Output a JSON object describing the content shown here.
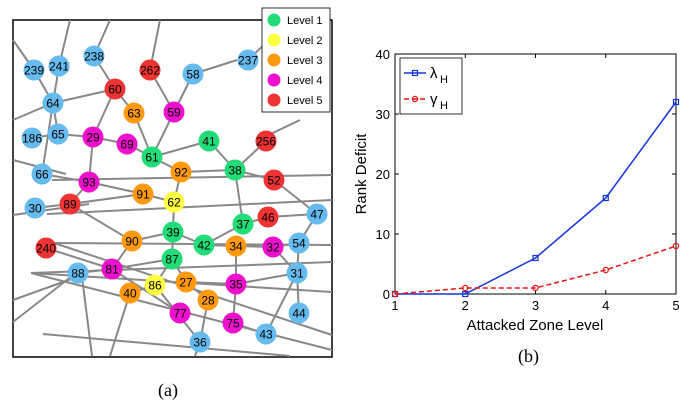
{
  "captions": {
    "a": "(a)",
    "b": "(b)"
  },
  "colors": {
    "level1": "#22dd77",
    "level2": "#ffff44",
    "level3": "#ff9a10",
    "level4": "#ee10cc",
    "level5": "#ee3333",
    "unclassified": "#66bbee",
    "edge": "#888888",
    "series_lambda": "#1133dd",
    "series_gamma": "#ee1111"
  },
  "graph": {
    "legend": [
      {
        "label": "Level 1",
        "level": 1
      },
      {
        "label": "Level 2",
        "level": 2
      },
      {
        "label": "Level 3",
        "level": 3
      },
      {
        "label": "Level 4",
        "level": 4
      },
      {
        "label": "Level 5",
        "level": 5
      }
    ],
    "nodes": [
      {
        "id": "239",
        "level": 0
      },
      {
        "id": "241",
        "level": 0
      },
      {
        "id": "238",
        "level": 0
      },
      {
        "id": "262",
        "level": 5
      },
      {
        "id": "58",
        "level": 0
      },
      {
        "id": "237",
        "level": 0
      },
      {
        "id": "60",
        "level": 5
      },
      {
        "id": "64",
        "level": 0
      },
      {
        "id": "63",
        "level": 3
      },
      {
        "id": "59",
        "level": 4
      },
      {
        "id": "186",
        "level": 0
      },
      {
        "id": "65",
        "level": 0
      },
      {
        "id": "29",
        "level": 4
      },
      {
        "id": "69",
        "level": 4
      },
      {
        "id": "41",
        "level": 1
      },
      {
        "id": "256",
        "level": 5
      },
      {
        "id": "61",
        "level": 1
      },
      {
        "id": "66",
        "level": 0
      },
      {
        "id": "92",
        "level": 3
      },
      {
        "id": "38",
        "level": 1
      },
      {
        "id": "93",
        "level": 4
      },
      {
        "id": "52",
        "level": 5
      },
      {
        "id": "91",
        "level": 3
      },
      {
        "id": "89",
        "level": 5
      },
      {
        "id": "62",
        "level": 2
      },
      {
        "id": "30",
        "level": 0
      },
      {
        "id": "47",
        "level": 0
      },
      {
        "id": "37",
        "level": 1
      },
      {
        "id": "46",
        "level": 5
      },
      {
        "id": "39",
        "level": 1
      },
      {
        "id": "90",
        "level": 3
      },
      {
        "id": "54",
        "level": 0
      },
      {
        "id": "240",
        "level": 5
      },
      {
        "id": "42",
        "level": 1
      },
      {
        "id": "34",
        "level": 3
      },
      {
        "id": "32",
        "level": 4
      },
      {
        "id": "88",
        "level": 0
      },
      {
        "id": "81",
        "level": 4
      },
      {
        "id": "87",
        "level": 1
      },
      {
        "id": "31",
        "level": 0
      },
      {
        "id": "27",
        "level": 3
      },
      {
        "id": "86",
        "level": 2
      },
      {
        "id": "35",
        "level": 4
      },
      {
        "id": "40",
        "level": 3
      },
      {
        "id": "28",
        "level": 3
      },
      {
        "id": "44",
        "level": 0
      },
      {
        "id": "77",
        "level": 4
      },
      {
        "id": "75",
        "level": 4
      },
      {
        "id": "43",
        "level": 0
      },
      {
        "id": "36",
        "level": 0
      }
    ]
  },
  "chart_data": {
    "type": "line",
    "xlabel": "Attacked Zone Level",
    "ylabel": "Rank Deficit",
    "x": [
      1,
      2,
      3,
      4,
      5
    ],
    "xlim": [
      1,
      5
    ],
    "ylim": [
      0,
      40
    ],
    "xticks": [
      "1",
      "2",
      "3",
      "4",
      "5"
    ],
    "yticks": [
      "0",
      "10",
      "20",
      "30",
      "40"
    ],
    "grid": false,
    "legend_position": "top-left",
    "series": [
      {
        "name": "λ",
        "subscript": "H",
        "values": [
          0,
          0,
          6,
          16,
          32
        ],
        "style": "solid",
        "marker": "square",
        "color": "#1133dd"
      },
      {
        "name": "γ",
        "subscript": "H",
        "values": [
          0,
          1,
          1,
          4,
          8
        ],
        "style": "dashed",
        "marker": "circle",
        "color": "#ee1111"
      }
    ]
  }
}
